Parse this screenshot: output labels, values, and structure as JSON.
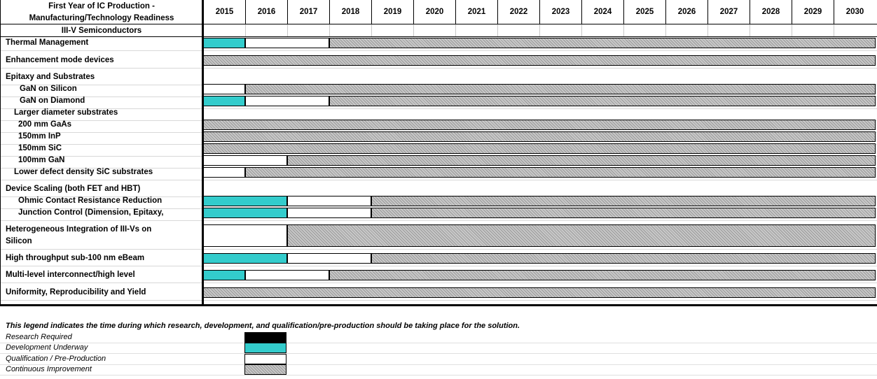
{
  "header": {
    "title_line1": "First Year of IC Production  -",
    "title_line2": "Manufacturing/Technology Readiness",
    "section": "III-V Semiconductors",
    "years": [
      "2015",
      "2016",
      "2017",
      "2018",
      "2019",
      "2020",
      "2021",
      "2022",
      "2023",
      "2024",
      "2025",
      "2026",
      "2027",
      "2028",
      "2029",
      "2030"
    ]
  },
  "rows": [
    {
      "label": "Thermal Management",
      "segments": [
        {
          "from": 0,
          "to": 1,
          "type": "d"
        },
        {
          "from": 1,
          "to": 3,
          "type": "q"
        },
        {
          "from": 3,
          "to": 16,
          "type": "c"
        }
      ]
    },
    {
      "label": "Enhancement mode devices",
      "segments": [
        {
          "from": 0,
          "to": 16,
          "type": "c"
        }
      ]
    },
    {
      "label": "Epitaxy and Substrates",
      "segments": []
    },
    {
      "label": "GaN on Silicon",
      "segments": [
        {
          "from": 0,
          "to": 1,
          "type": "q"
        },
        {
          "from": 1,
          "to": 16,
          "type": "c"
        }
      ]
    },
    {
      "label": "GaN on Diamond",
      "segments": [
        {
          "from": 0,
          "to": 1,
          "type": "d"
        },
        {
          "from": 1,
          "to": 3,
          "type": "q"
        },
        {
          "from": 3,
          "to": 16,
          "type": "c"
        }
      ]
    },
    {
      "label": "Larger diameter  substrates",
      "segments": []
    },
    {
      "label": "200 mm GaAs",
      "segments": [
        {
          "from": 0,
          "to": 16,
          "type": "c"
        }
      ]
    },
    {
      "label": "150mm InP",
      "segments": [
        {
          "from": 0,
          "to": 16,
          "type": "c"
        }
      ]
    },
    {
      "label": "150mm SiC",
      "segments": [
        {
          "from": 0,
          "to": 16,
          "type": "c"
        }
      ]
    },
    {
      "label": "100mm GaN",
      "segments": [
        {
          "from": 0,
          "to": 2,
          "type": "q"
        },
        {
          "from": 2,
          "to": 16,
          "type": "c"
        }
      ]
    },
    {
      "label": "Lower defect density SiC substrates",
      "segments": [
        {
          "from": 0,
          "to": 1,
          "type": "q"
        },
        {
          "from": 1,
          "to": 16,
          "type": "c"
        }
      ]
    },
    {
      "label": "Device Scaling (both FET and HBT)",
      "segments": []
    },
    {
      "label": "Ohmic Contact Resistance Reduction",
      "segments": [
        {
          "from": 0,
          "to": 2,
          "type": "d"
        },
        {
          "from": 2,
          "to": 4,
          "type": "q"
        },
        {
          "from": 4,
          "to": 16,
          "type": "c"
        }
      ]
    },
    {
      "label": "Junction  Control (Dimension, Epitaxy,",
      "segments": [
        {
          "from": 0,
          "to": 2,
          "type": "d"
        },
        {
          "from": 2,
          "to": 4,
          "type": "q"
        },
        {
          "from": 4,
          "to": 16,
          "type": "c"
        }
      ]
    },
    {
      "label": "Heterogeneous Integration of III-Vs on",
      "label2": "Silicon",
      "segments": [
        {
          "from": 0,
          "to": 2,
          "type": "q"
        },
        {
          "from": 2,
          "to": 16,
          "type": "c"
        }
      ]
    },
    {
      "label": "High throughput sub-100 nm eBeam",
      "segments": [
        {
          "from": 0,
          "to": 2,
          "type": "d"
        },
        {
          "from": 2,
          "to": 4,
          "type": "q"
        },
        {
          "from": 4,
          "to": 16,
          "type": "c"
        }
      ]
    },
    {
      "label": "Multi-level interconnect/high level",
      "segments": [
        {
          "from": 0,
          "to": 1,
          "type": "d"
        },
        {
          "from": 1,
          "to": 3,
          "type": "q"
        },
        {
          "from": 3,
          "to": 16,
          "type": "c"
        }
      ]
    },
    {
      "label": "Uniformity, Reproducibility and Yield",
      "segments": [
        {
          "from": 0,
          "to": 16,
          "type": "c"
        }
      ]
    }
  ],
  "legend": {
    "note": "This legend indicates the time during which research, development, and qualification/pre-production should be taking place for the solution.",
    "items": [
      {
        "label": "Research Required",
        "type": "r"
      },
      {
        "label": "Development Underway",
        "type": "d"
      },
      {
        "label": "Qualification / Pre-Production",
        "type": "q"
      },
      {
        "label": "Continuous Improvement",
        "type": "c"
      }
    ]
  },
  "colors": {
    "research": "#000000",
    "development": "#33cccc",
    "qualification": "#ffffff",
    "continuous": "#c8c8c8"
  }
}
